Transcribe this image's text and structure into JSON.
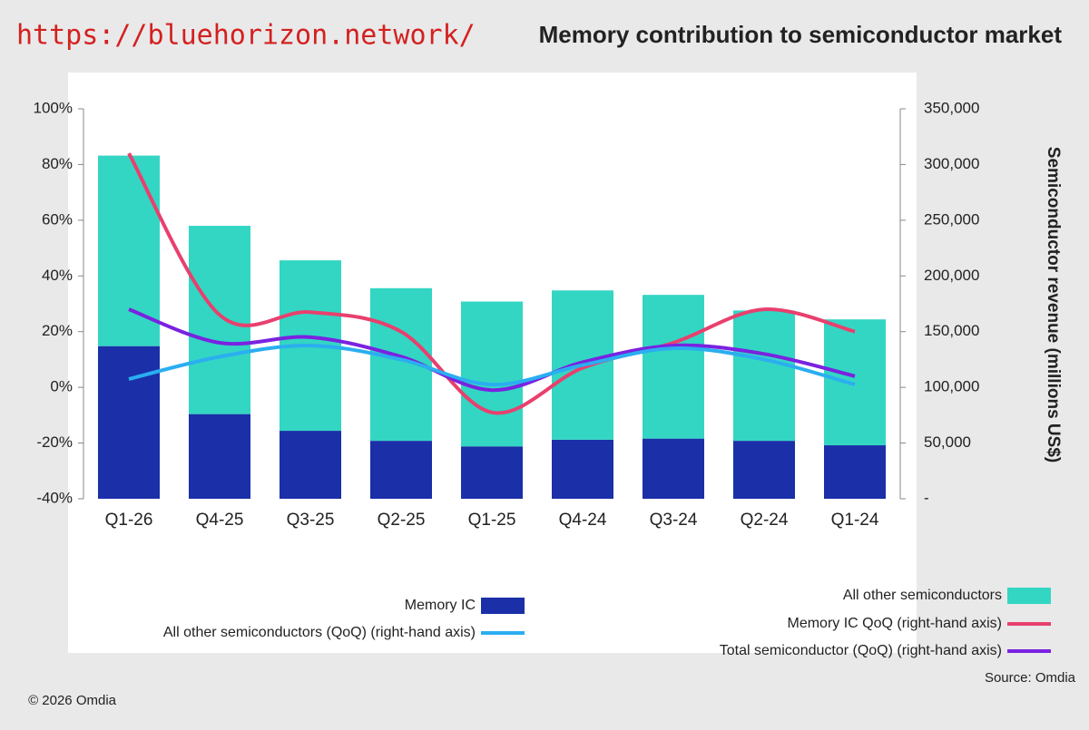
{
  "url": "https://bluehorizon.network/",
  "chart_data": {
    "type": "bar",
    "title": "Memory contribution to semiconductor market",
    "y_label": "Semiconductor revenue (millions US$)",
    "categories": [
      "Q1-26",
      "Q4-25",
      "Q3-25",
      "Q2-25",
      "Q1-25",
      "Q4-24",
      "Q3-24",
      "Q2-24",
      "Q1-24"
    ],
    "ylim": [
      0,
      350000
    ],
    "yticks": [
      {
        "value": 0,
        "label": "-"
      },
      {
        "value": 50000,
        "label": "50,000"
      },
      {
        "value": 100000,
        "label": "100,000"
      },
      {
        "value": 150000,
        "label": "150,000"
      },
      {
        "value": 200000,
        "label": "200,000"
      },
      {
        "value": 250000,
        "label": "250,000"
      },
      {
        "value": 300000,
        "label": "300,000"
      },
      {
        "value": 350000,
        "label": "350,000"
      }
    ],
    "y2lim": [
      -40,
      100
    ],
    "y2ticks": [
      {
        "value": -40,
        "label": "-40%"
      },
      {
        "value": -20,
        "label": "-20%"
      },
      {
        "value": 0,
        "label": "0%"
      },
      {
        "value": 20,
        "label": "20%"
      },
      {
        "value": 40,
        "label": "40%"
      },
      {
        "value": 60,
        "label": "60%"
      },
      {
        "value": 80,
        "label": "80%"
      },
      {
        "value": 100,
        "label": "100%"
      }
    ],
    "grid": false,
    "series": [
      {
        "name": "Memory IC",
        "type": "bar",
        "color": "#1a2fa8",
        "values": [
          137000,
          76000,
          61000,
          52000,
          47000,
          53000,
          54000,
          52000,
          48000
        ]
      },
      {
        "name": "All other semiconductors",
        "type": "bar",
        "color": "#33d6c3",
        "values": [
          171000,
          169000,
          153000,
          137000,
          130000,
          134000,
          129000,
          117000,
          113000
        ]
      },
      {
        "name": "Memory IC QoQ (right-hand axis)",
        "type": "line",
        "axis": "y2",
        "color": "#e8406e",
        "values": [
          84,
          26,
          27,
          20,
          -9,
          7,
          16,
          28,
          20
        ]
      },
      {
        "name": "Total semiconductor (QoQ) (right-hand axis)",
        "type": "line",
        "axis": "y2",
        "color": "#7a22e0",
        "values": [
          28,
          16,
          18,
          11,
          -1,
          9,
          15,
          12,
          4
        ]
      },
      {
        "name": "All other semiconductors (QoQ) (right-hand axis)",
        "type": "line",
        "axis": "y2",
        "color": "#2aaef0",
        "values": [
          3,
          11,
          15,
          10,
          1,
          8,
          14,
          10,
          1
        ]
      }
    ],
    "source": "Source: Omdia",
    "copyright": "© 2026 Omdia"
  }
}
